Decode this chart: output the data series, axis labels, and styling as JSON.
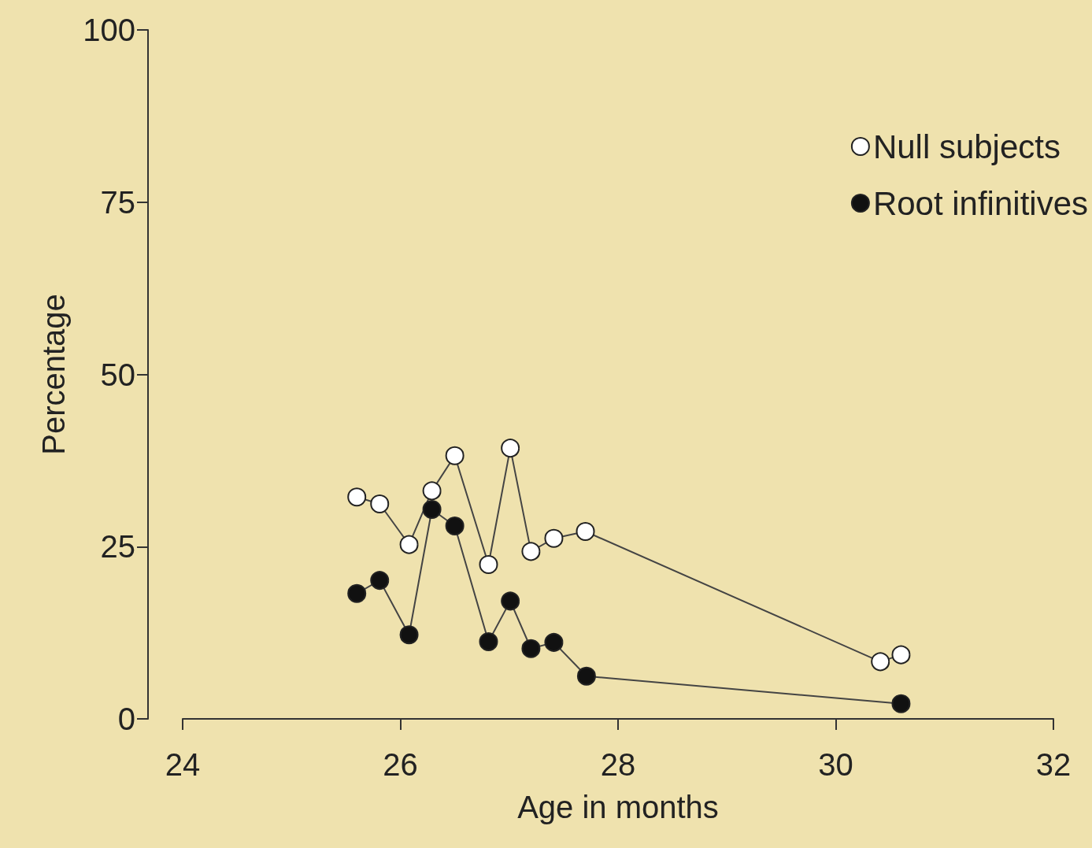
{
  "chart_data": {
    "type": "line",
    "xlabel": "Age in months",
    "ylabel": "Percentage",
    "xlim": [
      24,
      32
    ],
    "xticks": [
      24,
      26,
      28,
      30,
      32
    ],
    "ylim": [
      0,
      100
    ],
    "yticks": [
      0,
      25,
      50,
      75,
      100
    ],
    "grid": false,
    "legend": "top right",
    "marker": "circle",
    "line_style": "solid",
    "series": [
      {
        "name": "Null subjects",
        "color": "#ffffff",
        "x": [
          25.6,
          25.81,
          26.08,
          26.29,
          26.5,
          26.81,
          27.01,
          27.2,
          27.41,
          27.7,
          30.41,
          30.6
        ],
        "values": [
          32.2,
          31.2,
          25.3,
          33.1,
          38.2,
          22.4,
          39.3,
          24.3,
          26.2,
          27.2,
          8.3,
          9.3
        ]
      },
      {
        "name": "Root infinitives",
        "color": "#111111",
        "x": [
          25.6,
          25.81,
          26.08,
          26.29,
          26.5,
          26.81,
          27.01,
          27.2,
          27.41,
          27.71,
          30.6
        ],
        "values": [
          18.2,
          20.1,
          12.2,
          30.4,
          28,
          11.2,
          17.1,
          10.2,
          11.1,
          6.2,
          2.2
        ]
      }
    ]
  }
}
